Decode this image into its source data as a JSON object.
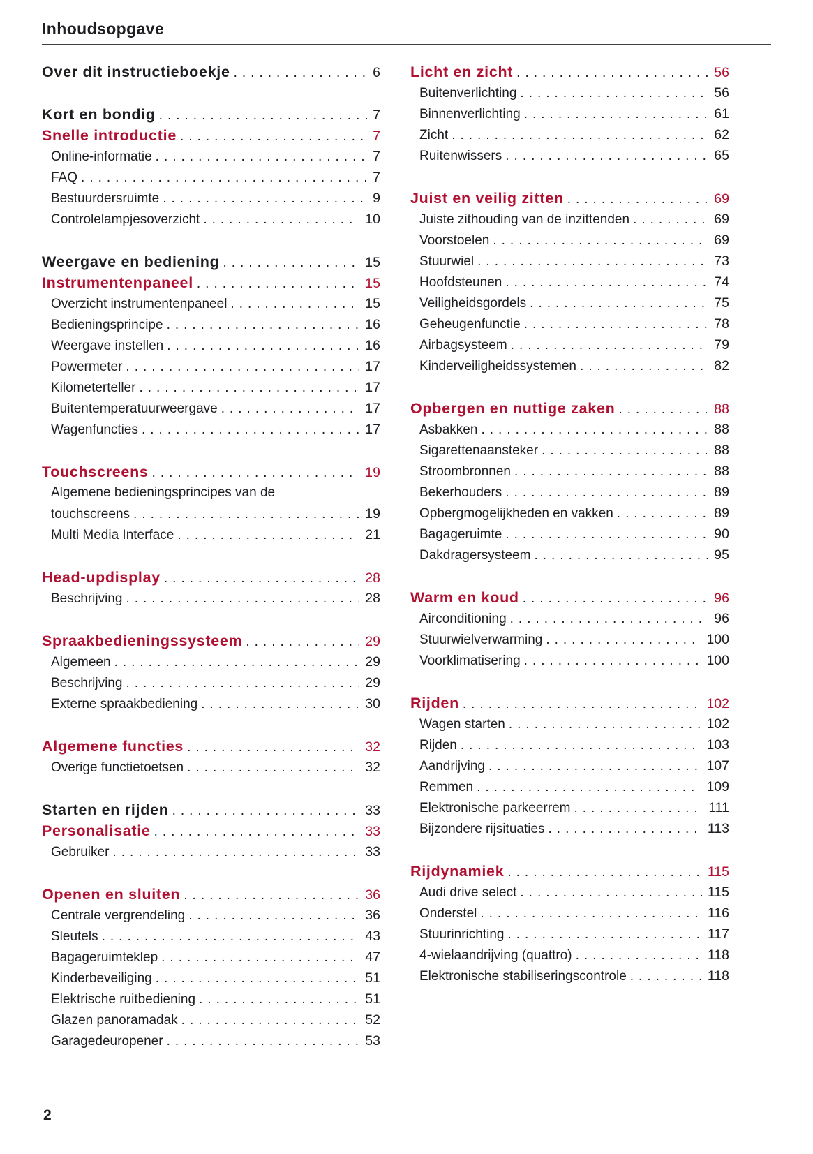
{
  "page": {
    "title": "Inhoudsopgave",
    "page_number": "2",
    "colors": {
      "accent_red": "#b01031",
      "text": "#1d1d22",
      "rule": "#3f4246"
    }
  },
  "toc": {
    "columns": [
      {
        "groups": [
          {
            "rows": [
              {
                "level": "h1",
                "label": "Over dit instructieboekje",
                "page": "6"
              }
            ]
          },
          {
            "rows": [
              {
                "level": "h1",
                "label": "Kort en bondig",
                "page": "7"
              },
              {
                "level": "h2",
                "label": "Snelle introductie",
                "page": "7"
              },
              {
                "level": "sub",
                "label": "Online-informatie",
                "page": "7"
              },
              {
                "level": "sub",
                "label": "FAQ",
                "page": "7"
              },
              {
                "level": "sub",
                "label": "Bestuurdersruimte",
                "page": "9"
              },
              {
                "level": "sub",
                "label": "Controlelampjesoverzicht",
                "page": "10"
              }
            ]
          },
          {
            "rows": [
              {
                "level": "h1",
                "label": "Weergave en bediening",
                "page": "15"
              },
              {
                "level": "h2",
                "label": "Instrumentenpaneel",
                "page": "15"
              },
              {
                "level": "sub",
                "label": "Overzicht instrumentenpaneel",
                "page": "15"
              },
              {
                "level": "sub",
                "label": "Bedieningsprincipe",
                "page": "16"
              },
              {
                "level": "sub",
                "label": "Weergave instellen",
                "page": "16"
              },
              {
                "level": "sub",
                "label": "Powermeter",
                "page": "17"
              },
              {
                "level": "sub",
                "label": "Kilometerteller",
                "page": "17"
              },
              {
                "level": "sub",
                "label": "Buitentemperatuurweergave",
                "page": "17"
              },
              {
                "level": "sub",
                "label": "Wagenfuncties",
                "page": "17"
              }
            ]
          },
          {
            "rows": [
              {
                "level": "h2",
                "label": "Touchscreens",
                "page": "19"
              },
              {
                "level": "sub",
                "label": "Algemene bedieningsprincipes van de",
                "page": ""
              },
              {
                "level": "sub",
                "label": "touchscreens",
                "page": "19"
              },
              {
                "level": "sub",
                "label": "Multi Media Interface",
                "page": "21"
              }
            ]
          },
          {
            "rows": [
              {
                "level": "h2",
                "label": "Head-updisplay",
                "page": "28"
              },
              {
                "level": "sub",
                "label": "Beschrijving",
                "page": "28"
              }
            ]
          },
          {
            "rows": [
              {
                "level": "h2",
                "label": "Spraakbedieningssysteem",
                "page": "29"
              },
              {
                "level": "sub",
                "label": "Algemeen",
                "page": "29"
              },
              {
                "level": "sub",
                "label": "Beschrijving",
                "page": "29"
              },
              {
                "level": "sub",
                "label": "Externe spraakbediening",
                "page": "30"
              }
            ]
          },
          {
            "rows": [
              {
                "level": "h2",
                "label": "Algemene functies",
                "page": "32"
              },
              {
                "level": "sub",
                "label": "Overige functietoetsen",
                "page": "32"
              }
            ]
          },
          {
            "rows": [
              {
                "level": "h1",
                "label": "Starten en rijden",
                "page": "33"
              },
              {
                "level": "h2",
                "label": "Personalisatie",
                "page": "33"
              },
              {
                "level": "sub",
                "label": "Gebruiker",
                "page": "33"
              }
            ]
          },
          {
            "rows": [
              {
                "level": "h2",
                "label": "Openen en sluiten",
                "page": "36"
              },
              {
                "level": "sub",
                "label": "Centrale vergrendeling",
                "page": "36"
              },
              {
                "level": "sub",
                "label": "Sleutels",
                "page": "43"
              },
              {
                "level": "sub",
                "label": "Bagageruimteklep",
                "page": "47"
              },
              {
                "level": "sub",
                "label": "Kinderbeveiliging",
                "page": "51"
              },
              {
                "level": "sub",
                "label": "Elektrische ruitbediening",
                "page": "51"
              },
              {
                "level": "sub",
                "label": "Glazen panoramadak",
                "page": "52"
              },
              {
                "level": "sub",
                "label": "Garagedeuropener",
                "page": "53"
              }
            ]
          }
        ]
      },
      {
        "groups": [
          {
            "rows": [
              {
                "level": "h2",
                "label": "Licht en zicht",
                "page": "56"
              },
              {
                "level": "sub",
                "label": "Buitenverlichting",
                "page": "56"
              },
              {
                "level": "sub",
                "label": "Binnenverlichting",
                "page": "61"
              },
              {
                "level": "sub",
                "label": "Zicht",
                "page": "62"
              },
              {
                "level": "sub",
                "label": "Ruitenwissers",
                "page": "65"
              }
            ]
          },
          {
            "rows": [
              {
                "level": "h2",
                "label": "Juist en veilig zitten",
                "page": "69"
              },
              {
                "level": "sub",
                "label": "Juiste zithouding van de inzittenden",
                "page": "69"
              },
              {
                "level": "sub",
                "label": "Voorstoelen",
                "page": "69"
              },
              {
                "level": "sub",
                "label": "Stuurwiel",
                "page": "73"
              },
              {
                "level": "sub",
                "label": "Hoofdsteunen",
                "page": "74"
              },
              {
                "level": "sub",
                "label": "Veiligheidsgordels",
                "page": "75"
              },
              {
                "level": "sub",
                "label": "Geheugenfunctie",
                "page": "78"
              },
              {
                "level": "sub",
                "label": "Airbagsysteem",
                "page": "79"
              },
              {
                "level": "sub",
                "label": "Kinderveiligheidssystemen",
                "page": "82"
              }
            ]
          },
          {
            "rows": [
              {
                "level": "h2",
                "label": "Opbergen en nuttige zaken",
                "page": "88"
              },
              {
                "level": "sub",
                "label": "Asbakken",
                "page": "88"
              },
              {
                "level": "sub",
                "label": "Sigarettenaansteker",
                "page": "88"
              },
              {
                "level": "sub",
                "label": "Stroombronnen",
                "page": "88"
              },
              {
                "level": "sub",
                "label": "Bekerhouders",
                "page": "89"
              },
              {
                "level": "sub",
                "label": "Opbergmogelijkheden en vakken",
                "page": "89"
              },
              {
                "level": "sub",
                "label": "Bagageruimte",
                "page": "90"
              },
              {
                "level": "sub",
                "label": "Dakdragersysteem",
                "page": "95"
              }
            ]
          },
          {
            "rows": [
              {
                "level": "h2",
                "label": "Warm en koud",
                "page": "96"
              },
              {
                "level": "sub",
                "label": "Airconditioning",
                "page": "96"
              },
              {
                "level": "sub",
                "label": "Stuurwielverwarming",
                "page": "100"
              },
              {
                "level": "sub",
                "label": "Voorklimatisering",
                "page": "100"
              }
            ]
          },
          {
            "rows": [
              {
                "level": "h2",
                "label": "Rijden",
                "page": "102"
              },
              {
                "level": "sub",
                "label": "Wagen starten",
                "page": "102"
              },
              {
                "level": "sub",
                "label": "Rijden",
                "page": "103"
              },
              {
                "level": "sub",
                "label": "Aandrijving",
                "page": "107"
              },
              {
                "level": "sub",
                "label": "Remmen",
                "page": "109"
              },
              {
                "level": "sub",
                "label": "Elektronische parkeerrem",
                "page": "111"
              },
              {
                "level": "sub",
                "label": "Bijzondere rijsituaties",
                "page": "113"
              }
            ]
          },
          {
            "rows": [
              {
                "level": "h2",
                "label": "Rijdynamiek",
                "page": "115"
              },
              {
                "level": "sub",
                "label": "Audi drive select",
                "page": "115"
              },
              {
                "level": "sub",
                "label": "Onderstel",
                "page": "116"
              },
              {
                "level": "sub",
                "label": "Stuurinrichting",
                "page": "117"
              },
              {
                "level": "sub",
                "label": "4-wielaandrijving (quattro)",
                "page": "118"
              },
              {
                "level": "sub",
                "label": "Elektronische stabiliseringscontrole",
                "page": "118"
              }
            ]
          }
        ]
      }
    ]
  }
}
